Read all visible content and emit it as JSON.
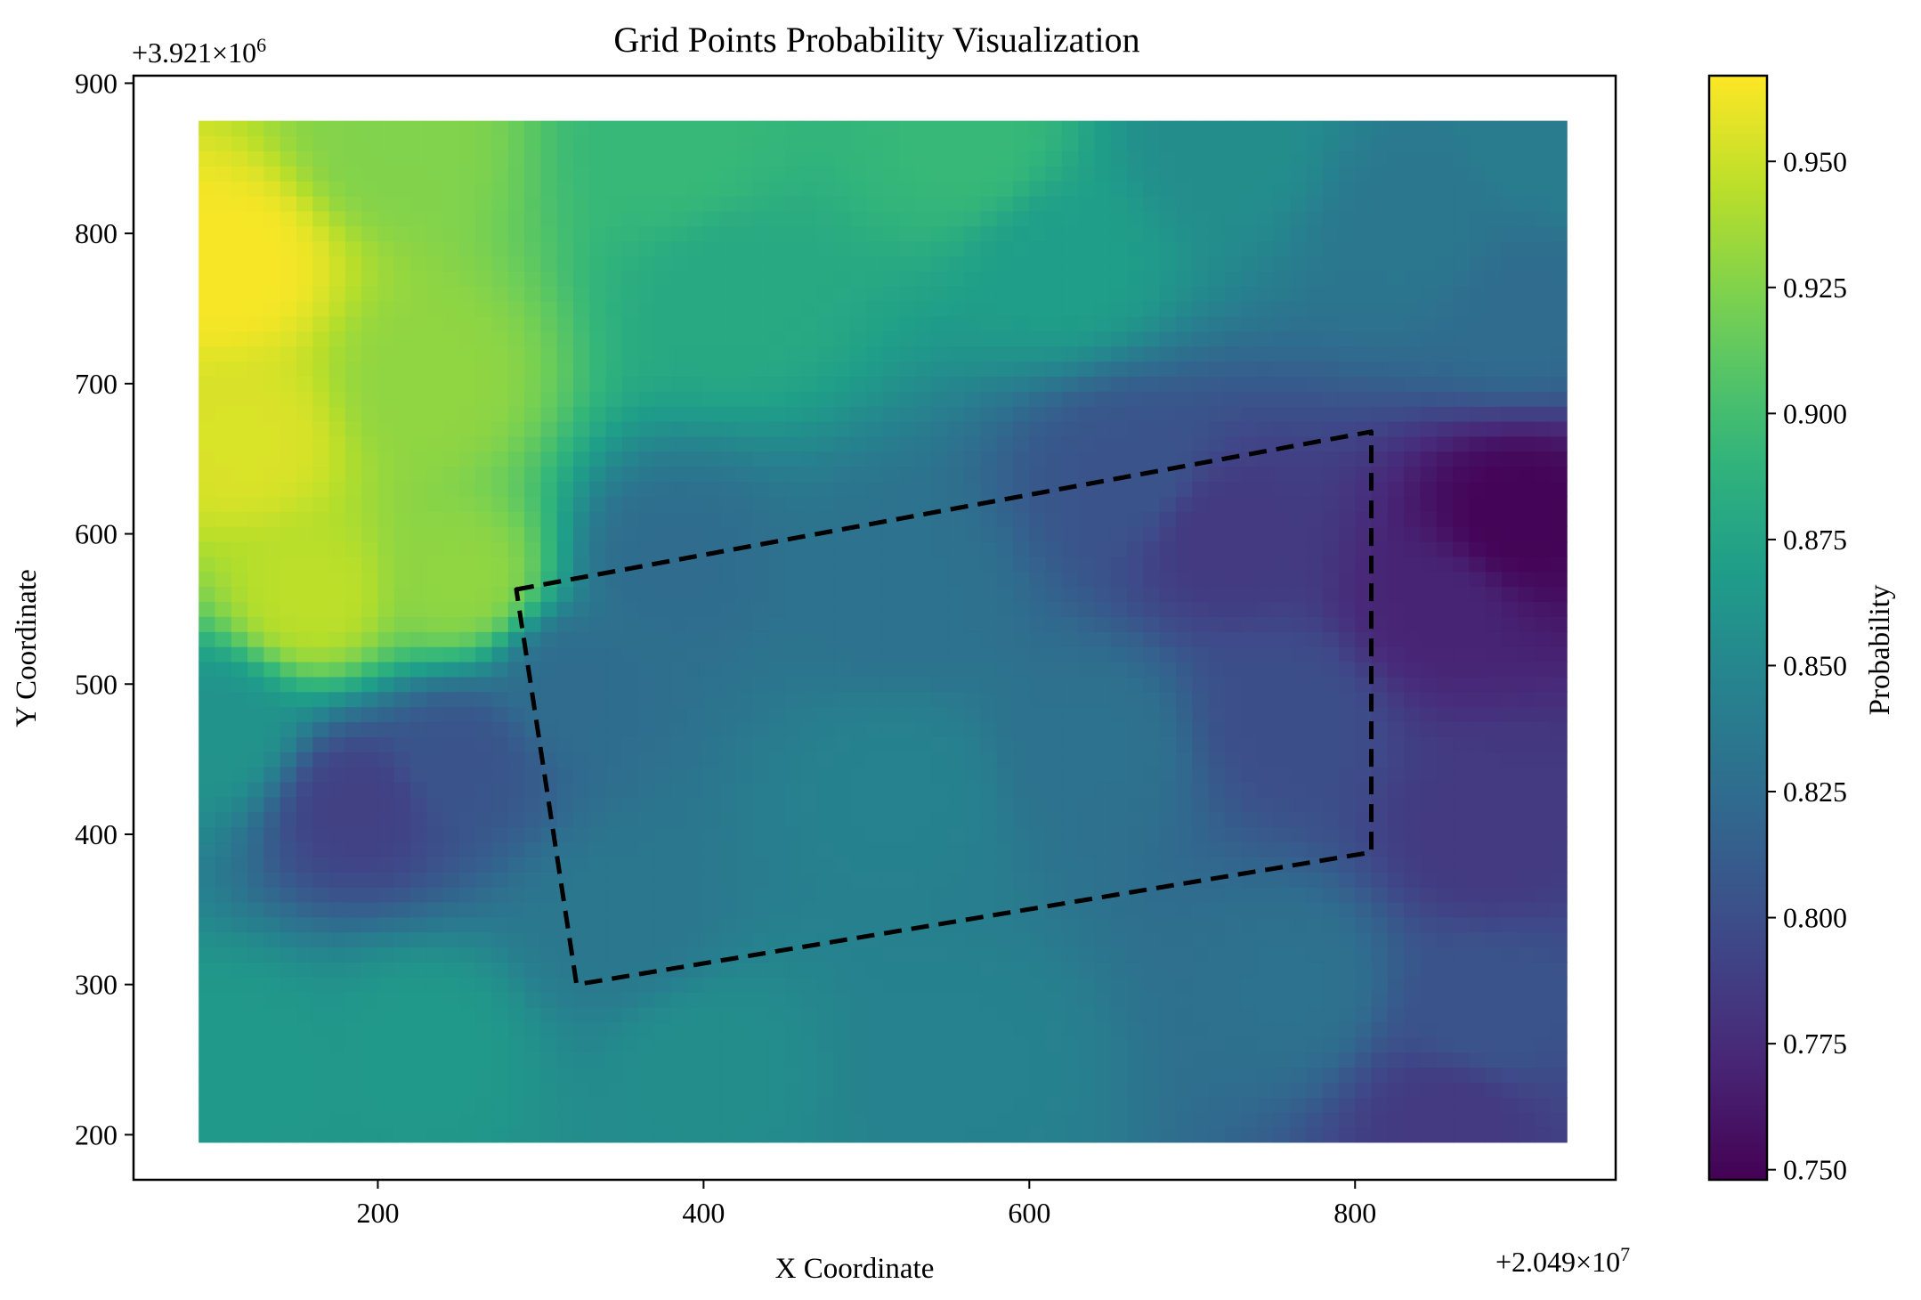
{
  "chart_data": {
    "type": "heatmap",
    "title": "Grid Points Probability Visualization",
    "xlabel": "X Coordinate",
    "ylabel": "Y Coordinate",
    "x_offset_label": "+2.049×10",
    "x_offset_exp": "7",
    "y_offset_label": "+3.921×10",
    "y_offset_exp": "6",
    "xlim": [
      50,
      960
    ],
    "ylim": [
      170,
      905
    ],
    "x_ticks": [
      200,
      400,
      600,
      800
    ],
    "x_tick_labels": [
      "200",
      "400",
      "600",
      "800"
    ],
    "y_ticks": [
      200,
      300,
      400,
      500,
      600,
      700,
      800,
      900
    ],
    "y_tick_labels": [
      "200",
      "300",
      "400",
      "500",
      "600",
      "700",
      "800",
      "900"
    ],
    "grid_extent": {
      "x": [
        90,
        930
      ],
      "y": [
        195,
        875
      ]
    },
    "grid": false,
    "colormap": "viridis",
    "colorbar": {
      "label": "Probability",
      "range": [
        0.748,
        0.967
      ],
      "ticks": [
        0.75,
        0.775,
        0.8,
        0.825,
        0.85,
        0.875,
        0.9,
        0.925,
        0.95
      ],
      "tick_labels": [
        "0.750",
        "0.775",
        "0.800",
        "0.825",
        "0.850",
        "0.875",
        "0.900",
        "0.925",
        "0.950"
      ]
    },
    "field_anchors": [
      {
        "x": 110,
        "y": 780,
        "p": 0.965
      },
      {
        "x": 120,
        "y": 660,
        "p": 0.955
      },
      {
        "x": 160,
        "y": 560,
        "p": 0.945
      },
      {
        "x": 230,
        "y": 700,
        "p": 0.93
      },
      {
        "x": 210,
        "y": 860,
        "p": 0.925
      },
      {
        "x": 250,
        "y": 570,
        "p": 0.93
      },
      {
        "x": 380,
        "y": 860,
        "p": 0.895
      },
      {
        "x": 420,
        "y": 760,
        "p": 0.88
      },
      {
        "x": 560,
        "y": 860,
        "p": 0.895
      },
      {
        "x": 620,
        "y": 780,
        "p": 0.87
      },
      {
        "x": 720,
        "y": 860,
        "p": 0.855
      },
      {
        "x": 840,
        "y": 800,
        "p": 0.835
      },
      {
        "x": 900,
        "y": 750,
        "p": 0.825
      },
      {
        "x": 920,
        "y": 860,
        "p": 0.84
      },
      {
        "x": 900,
        "y": 610,
        "p": 0.75
      },
      {
        "x": 850,
        "y": 550,
        "p": 0.77
      },
      {
        "x": 720,
        "y": 600,
        "p": 0.785
      },
      {
        "x": 660,
        "y": 640,
        "p": 0.805
      },
      {
        "x": 760,
        "y": 480,
        "p": 0.8
      },
      {
        "x": 880,
        "y": 400,
        "p": 0.785
      },
      {
        "x": 880,
        "y": 280,
        "p": 0.805
      },
      {
        "x": 860,
        "y": 210,
        "p": 0.785
      },
      {
        "x": 760,
        "y": 300,
        "p": 0.83
      },
      {
        "x": 380,
        "y": 580,
        "p": 0.825
      },
      {
        "x": 520,
        "y": 560,
        "p": 0.83
      },
      {
        "x": 520,
        "y": 430,
        "p": 0.845
      },
      {
        "x": 640,
        "y": 460,
        "p": 0.83
      },
      {
        "x": 190,
        "y": 420,
        "p": 0.79
      },
      {
        "x": 250,
        "y": 450,
        "p": 0.805
      },
      {
        "x": 100,
        "y": 470,
        "p": 0.86
      },
      {
        "x": 110,
        "y": 250,
        "p": 0.865
      },
      {
        "x": 230,
        "y": 260,
        "p": 0.865
      },
      {
        "x": 400,
        "y": 250,
        "p": 0.855
      },
      {
        "x": 560,
        "y": 250,
        "p": 0.845
      },
      {
        "x": 350,
        "y": 340,
        "p": 0.835
      },
      {
        "x": 320,
        "y": 500,
        "p": 0.825
      }
    ],
    "annotations": [
      {
        "type": "polygon",
        "style": "dashed",
        "color": "#000000",
        "points": [
          [
            285,
            563
          ],
          [
            810,
            668
          ],
          [
            810,
            388
          ],
          [
            322,
            300
          ]
        ]
      }
    ]
  },
  "colors": {
    "background": "#ffffff",
    "axes": "#000000",
    "annotation": "#000000"
  }
}
